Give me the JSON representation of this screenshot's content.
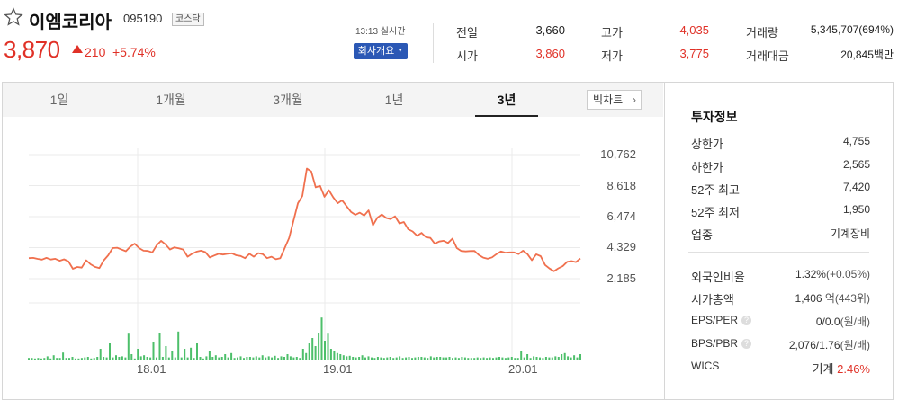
{
  "stock": {
    "name": "이엠코리아",
    "code": "095190",
    "market": "코스닥",
    "price": "3,870",
    "change": "210",
    "change_pct": "+5.74%",
    "time": "13:13 실시간",
    "company_button": "회사개요"
  },
  "stats": {
    "prev_close_label": "전일",
    "prev_close": "3,660",
    "open_label": "시가",
    "open": "3,860",
    "high_label": "고가",
    "high": "4,035",
    "low_label": "저가",
    "low": "3,775",
    "volume_label": "거래량",
    "volume": "5,345,707(694%)",
    "amount_label": "거래대금",
    "amount": "20,845백만"
  },
  "tabs": [
    "1일",
    "1개월",
    "3개월",
    "1년",
    "3년"
  ],
  "active_tab": "3년",
  "bigchart_label": "빅차트",
  "chart_data": {
    "type": "line",
    "x_ticks": [
      "18.01",
      "19.01",
      "20.01"
    ],
    "y_ticks": [
      "10,762",
      "8,618",
      "6,474",
      "4,329",
      "2,185"
    ],
    "ylim": [
      2185,
      10762
    ],
    "series": [
      {
        "values": [
          3600,
          3620,
          3550,
          3500,
          3620,
          3510,
          3560,
          3420,
          3520,
          3380,
          2870,
          2990,
          2950,
          3450,
          3180,
          3000,
          2920,
          3450,
          3800,
          4300,
          4320,
          4200,
          4080,
          4400,
          4600,
          4300,
          4120,
          4100,
          4000,
          4500,
          4800,
          4550,
          4200,
          4350,
          4280,
          4200,
          3700,
          3900,
          4050,
          4120,
          4020,
          3650,
          3780,
          3900,
          3850,
          3900,
          3940,
          3800,
          3750,
          3600,
          3900,
          3700,
          3950,
          3880,
          3600,
          3700,
          3530,
          3600,
          4300,
          5000,
          6200,
          7400,
          7900,
          9800,
          9600,
          8500,
          8600,
          7850,
          8300,
          7800,
          7400,
          7600,
          7200,
          6800,
          6600,
          6750,
          6550,
          6900,
          5880,
          6400,
          6620,
          6380,
          6300,
          6500,
          6000,
          6100,
          5600,
          5450,
          5150,
          5350,
          5050,
          5000,
          4600,
          4750,
          4800,
          4650,
          4950,
          4300,
          4100,
          4070,
          4090,
          4100,
          3820,
          3640,
          3560,
          3660,
          3880,
          4060,
          3980,
          4000,
          4000,
          3880,
          4120,
          3880,
          3460,
          3870,
          3740,
          3130,
          2890,
          2700,
          2900,
          3050,
          3350,
          3400,
          3330,
          3580
        ]
      }
    ],
    "volume": [
      0.03,
      0.03,
      0.02,
      0.03,
      0.02,
      0.03,
      0.06,
      0.02,
      0.08,
      0.03,
      0.03,
      0.13,
      0.03,
      0.03,
      0.05,
      0.02,
      0.02,
      0.03,
      0.04,
      0.05,
      0.02,
      0.03,
      0.05,
      0.2,
      0.05,
      0.04,
      0.3,
      0.04,
      0.08,
      0.05,
      0.06,
      0.04,
      0.48,
      0.1,
      0.02,
      0.2,
      0.06,
      0.08,
      0.05,
      0.04,
      0.32,
      0.04,
      0.5,
      0.05,
      0.25,
      0.04,
      0.15,
      0.04,
      0.52,
      0.04,
      0.2,
      0.04,
      0.22,
      0.03,
      0.3,
      0.05,
      0.02,
      0.06,
      0.15,
      0.05,
      0.08,
      0.04,
      0.05,
      0.1,
      0.04,
      0.12,
      0.03,
      0.04,
      0.06,
      0.03,
      0.05,
      0.05,
      0.04,
      0.06,
      0.04,
      0.08,
      0.04,
      0.06,
      0.04,
      0.07,
      0.03,
      0.06,
      0.05,
      0.1,
      0.06,
      0.04,
      0.05,
      0.03,
      0.2,
      0.12,
      0.3,
      0.4,
      0.25,
      0.5,
      0.78,
      0.35,
      0.48,
      0.2,
      0.15,
      0.12,
      0.1,
      0.08,
      0.06,
      0.07,
      0.05,
      0.04,
      0.05,
      0.08,
      0.04,
      0.06,
      0.04,
      0.03,
      0.05,
      0.04,
      0.03,
      0.04,
      0.05,
      0.03,
      0.04,
      0.06,
      0.03,
      0.04,
      0.05,
      0.03,
      0.04,
      0.05,
      0.05,
      0.04,
      0.03,
      0.06,
      0.04,
      0.05,
      0.05,
      0.04,
      0.04,
      0.05,
      0.03,
      0.04,
      0.03,
      0.05,
      0.04,
      0.03,
      0.03,
      0.03,
      0.04,
      0.03,
      0.04,
      0.03,
      0.04,
      0.03,
      0.04,
      0.05,
      0.04,
      0.03,
      0.04,
      0.05,
      0.03,
      0.03,
      0.15,
      0.04,
      0.1,
      0.03,
      0.06,
      0.05,
      0.04,
      0.03,
      0.05,
      0.04,
      0.04,
      0.06,
      0.05,
      0.1,
      0.12,
      0.06,
      0.04,
      0.08,
      0.04,
      0.1
    ],
    "grid": true,
    "line_color": "#f0704e",
    "volume_color": "#4dbf6a"
  },
  "invest": {
    "title": "투자정보",
    "upper_limit_label": "상한가",
    "upper_limit": "4,755",
    "lower_limit_label": "하한가",
    "lower_limit": "2,565",
    "w52_high_label": "52주 최고",
    "w52_high": "7,420",
    "w52_low_label": "52주 최저",
    "w52_low": "1,950",
    "sector_label": "업종",
    "sector": "기계장비",
    "foreign_label": "외국인비율",
    "foreign": "1.32%",
    "foreign_change": "(+0.05%)",
    "mcap_label": "시가총액",
    "mcap": "1,406",
    "mcap_unit": "억(443위)",
    "eps_label": "EPS/PER",
    "eps": "0/0.0",
    "eps_unit": "(원/배)",
    "bps_label": "BPS/PBR",
    "bps": "2,076/1.76",
    "bps_unit": "(원/배)",
    "wics_label": "WICS",
    "wics": "기계",
    "wics_pct": "2.46%"
  },
  "colors": {
    "up": "#e03127",
    "down": "#2b5bb7",
    "button": "#2b58b5"
  }
}
